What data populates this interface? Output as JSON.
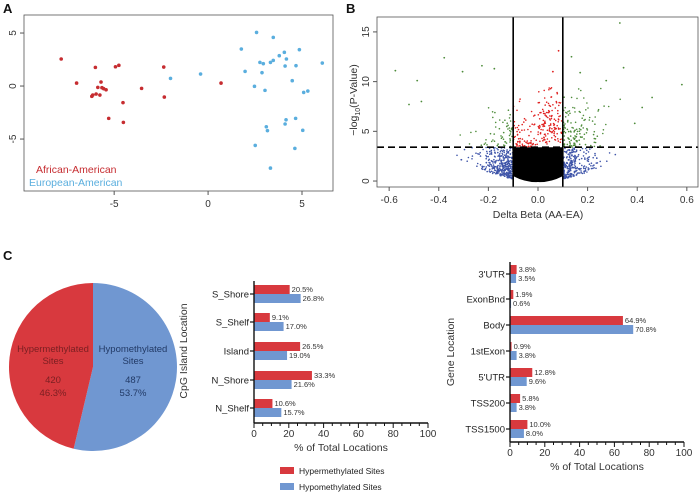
{
  "panels": {
    "a": "A",
    "b": "B",
    "c": "C"
  },
  "chart_data": [
    {
      "panel": "A",
      "type": "scatter",
      "xlabel": "",
      "ylabel": "",
      "xlim": [
        -9.8,
        6.65
      ],
      "ylim": [
        -9.9,
        6.7
      ],
      "xticks": [
        -5,
        0,
        5
      ],
      "yticks": [
        -5,
        0,
        5
      ],
      "grid": false,
      "legend_position": "bottom-left",
      "series": [
        {
          "name": "African-American",
          "color": "#c62c30",
          "points": [
            [
              -7.82,
              2.55
            ],
            [
              -7.0,
              0.28
            ],
            [
              -6.0,
              1.76
            ],
            [
              -4.93,
              1.82
            ],
            [
              -4.75,
              1.95
            ],
            [
              -2.36,
              1.79
            ],
            [
              -5.7,
              0.38
            ],
            [
              -6.19,
              -0.97
            ],
            [
              -6.14,
              -0.85
            ],
            [
              -5.96,
              -0.75
            ],
            [
              -5.87,
              -0.13
            ],
            [
              -5.76,
              -0.85
            ],
            [
              -5.65,
              -0.16
            ],
            [
              -5.56,
              -0.25
            ],
            [
              -5.43,
              -0.35
            ],
            [
              -3.54,
              -0.22
            ],
            [
              -4.53,
              -1.57
            ],
            [
              -5.29,
              -3.05
            ],
            [
              -4.51,
              -3.43
            ],
            [
              -2.33,
              -1.04
            ],
            [
              0.69,
              0.28
            ]
          ]
        },
        {
          "name": "European-American",
          "color": "#5aaede",
          "points": [
            [
              -2.0,
              0.72
            ],
            [
              -0.4,
              1.13
            ],
            [
              1.77,
              3.49
            ],
            [
              1.97,
              1.38
            ],
            [
              2.58,
              5.06
            ],
            [
              2.76,
              2.23
            ],
            [
              2.94,
              2.11
            ],
            [
              2.87,
              1.26
            ],
            [
              2.47,
              -0.03
            ],
            [
              3.03,
              -0.41
            ],
            [
              3.32,
              2.23
            ],
            [
              3.47,
              2.42
            ],
            [
              3.47,
              4.59
            ],
            [
              3.79,
              2.86
            ],
            [
              4.06,
              3.18
            ],
            [
              4.1,
              1.89
            ],
            [
              4.17,
              2.55
            ],
            [
              4.48,
              0.5
            ],
            [
              4.68,
              1.92
            ],
            [
              4.86,
              3.43
            ],
            [
              5.09,
              -0.6
            ],
            [
              5.31,
              -0.47
            ],
            [
              6.08,
              2.17
            ],
            [
              4.15,
              -3.18
            ],
            [
              4.1,
              -3.58
            ],
            [
              4.66,
              -3.05
            ],
            [
              5.04,
              -4.18
            ],
            [
              3.1,
              -3.84
            ],
            [
              3.16,
              -4.21
            ],
            [
              2.51,
              -5.6
            ],
            [
              4.62,
              -5.88
            ],
            [
              3.32,
              -7.74
            ]
          ]
        }
      ]
    },
    {
      "panel": "B",
      "type": "scatter",
      "xlabel": "Delta Beta (AA-EA)",
      "ylabel_prefix": "−log",
      "ylabel_sub": "10",
      "ylabel_suffix": "(P-Value)",
      "xlim": [
        -0.649,
        0.645
      ],
      "ylim": [
        -0.6,
        16.5
      ],
      "xticks": [
        -0.6,
        -0.4,
        -0.2,
        0.0,
        0.2,
        0.4,
        0.6
      ],
      "xtick_labels": [
        "-0.6",
        "-0.4",
        "-0.2",
        "0.0",
        "0.2",
        "0.4",
        "0.6"
      ],
      "yticks": [
        0,
        5,
        10,
        15
      ],
      "grid": false,
      "delta_beta_thresholds": [
        -0.1,
        0.1
      ],
      "pvalue_threshold": 3.4,
      "colors": {
        "significant_in_band": "#e0201f",
        "significant_outside": "#4e8c3b",
        "nonsig_outside": "#3f55a9",
        "nonsig_in_band": "#000000"
      },
      "outlier_points": [
        [
          0.33,
          15.9
        ],
        [
          -0.575,
          11.1
        ],
        [
          -0.378,
          12.4
        ],
        [
          -0.226,
          11.6
        ],
        [
          -0.304,
          11.0
        ],
        [
          -0.176,
          11.3
        ],
        [
          0.083,
          13.1
        ],
        [
          0.135,
          12.5
        ],
        [
          0.345,
          11.4
        ],
        [
          0.58,
          9.7
        ],
        [
          0.46,
          8.4
        ],
        [
          0.17,
          10.9
        ],
        [
          -0.487,
          10.1
        ],
        [
          0.275,
          10.1
        ],
        [
          0.06,
          11.0
        ],
        [
          -0.52,
          7.7
        ],
        [
          0.42,
          7.4
        ],
        [
          -0.47,
          8.0
        ],
        [
          0.39,
          5.8
        ]
      ]
    },
    {
      "panel": "C",
      "type": "pie",
      "slices": [
        {
          "label_line1": "Hypomethylated",
          "label_line2": "Sites",
          "count": "487",
          "percent_label": "53.7%",
          "value": 53.7,
          "color": "#7097d1"
        },
        {
          "label_line1": "Hypermethylated",
          "label_line2": "Sites",
          "count": "420",
          "percent_label": "46.3%",
          "value": 46.3,
          "color": "#d8393e"
        }
      ]
    },
    {
      "panel": "C",
      "type": "bar",
      "orientation": "horizontal",
      "ylabel": "CpG Island Location",
      "xlabel": "% of Total Locations",
      "xlim": [
        0,
        100
      ],
      "xticks": [
        0,
        20,
        40,
        60,
        80,
        100
      ],
      "categories": [
        "S_Shore",
        "S_Shelf",
        "Island",
        "N_Shore",
        "N_Shelf"
      ],
      "series": [
        {
          "name": "Hypermethylated Sites",
          "color": "#d8393e",
          "values": [
            20.5,
            9.1,
            26.5,
            33.3,
            10.6
          ],
          "labels": [
            "20.5%",
            "9.1%",
            "26.5%",
            "33.3%",
            "10.6%"
          ]
        },
        {
          "name": "Hypomethylated Sites",
          "color": "#7097d1",
          "values": [
            26.8,
            17.0,
            19.0,
            21.6,
            15.7
          ],
          "labels": [
            "26.8%",
            "17.0%",
            "19.0%",
            "21.6%",
            "15.7%"
          ]
        }
      ],
      "legend_position": "bottom"
    },
    {
      "panel": "C",
      "type": "bar",
      "orientation": "horizontal",
      "ylabel": "Gene Location",
      "xlabel": "% of Total Locations",
      "xlim": [
        0,
        100
      ],
      "xticks": [
        0,
        20,
        40,
        60,
        80,
        100
      ],
      "categories": [
        "3'UTR",
        "ExonBnd",
        "Body",
        "1stExon",
        "5'UTR",
        "TSS200",
        "TSS1500"
      ],
      "series": [
        {
          "name": "Hypermethylated Sites",
          "color": "#d8393e",
          "values": [
            3.8,
            1.9,
            64.9,
            0.9,
            12.8,
            5.8,
            10.0
          ],
          "labels": [
            "3.8%",
            "1.9%",
            "64.9%",
            "0.9%",
            "12.8%",
            "5.8%",
            "10.0%"
          ]
        },
        {
          "name": "Hypomethylated Sites",
          "color": "#7097d1",
          "values": [
            3.5,
            0.6,
            70.8,
            3.8,
            9.6,
            3.8,
            8.0
          ],
          "labels": [
            "3.5%",
            "0.6%",
            "70.8%",
            "3.8%",
            "9.6%",
            "3.8%",
            "8.0%"
          ]
        }
      ]
    }
  ]
}
